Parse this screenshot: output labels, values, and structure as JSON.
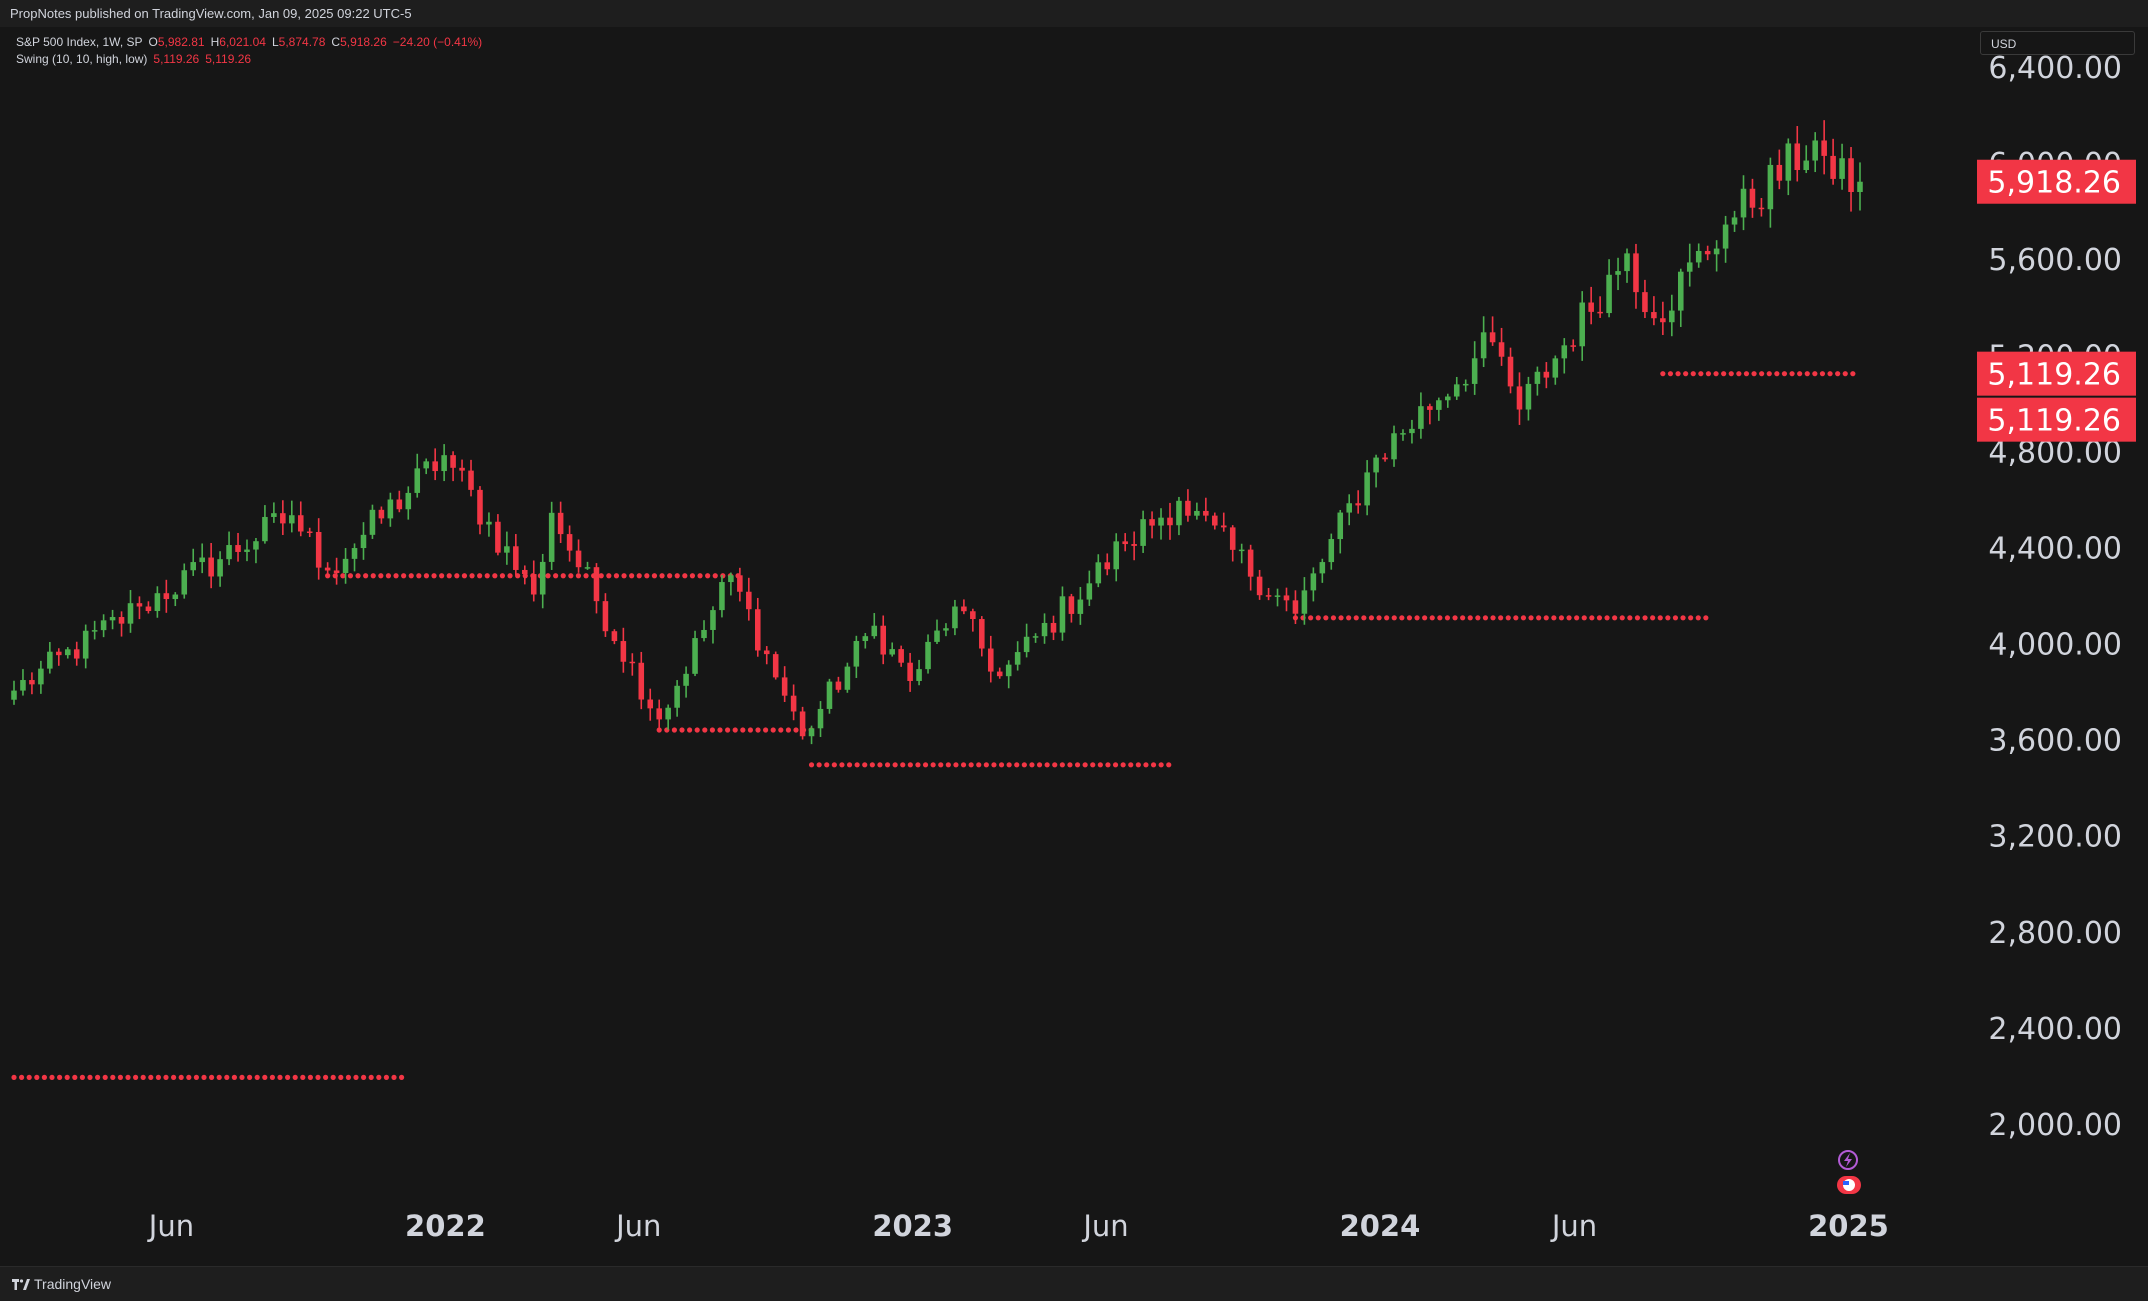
{
  "header": {
    "published": "PropNotes published on TradingView.com, Jan 09, 2025 09:22 UTC-5"
  },
  "legend": {
    "symbol": "S&P 500 Index, 1W, SP",
    "o_label": "O",
    "o_value": "5,982.81",
    "h_label": "H",
    "h_value": "6,021.04",
    "l_label": "L",
    "l_value": "5,874.78",
    "c_label": "C",
    "c_value": "5,918.26",
    "change": "−24.20 (−0.41%)",
    "indicator": "Swing (10, 10, high, low)",
    "indicator_v1": "5,119.26",
    "indicator_v2": "5,119.26"
  },
  "currency": "USD",
  "footer": {
    "brand": "TradingView"
  },
  "colors": {
    "up": "#4caf50",
    "down": "#f23645",
    "swing": "#f23645",
    "background": "#161616",
    "text": "#d1d4dc"
  },
  "chart_data": {
    "type": "candlestick",
    "y_range": [
      1750,
      6560
    ],
    "y_ticks": [
      {
        "value": 2000,
        "label": "2,000.00"
      },
      {
        "value": 2400,
        "label": "2,400.00"
      },
      {
        "value": 2800,
        "label": "2,800.00"
      },
      {
        "value": 3200,
        "label": "3,200.00"
      },
      {
        "value": 3600,
        "label": "3,600.00"
      },
      {
        "value": 4000,
        "label": "4,000.00"
      },
      {
        "value": 4400,
        "label": "4,400.00"
      },
      {
        "value": 4800,
        "label": "4,800.00"
      },
      {
        "value": 5200,
        "label": "5,200.00"
      },
      {
        "value": 5600,
        "label": "5,600.00"
      },
      {
        "value": 6000,
        "label": "6,000.00"
      },
      {
        "value": 6400,
        "label": "6,400.00"
      }
    ],
    "x_range": [
      "2021-01-29",
      "2025-01-10"
    ],
    "x_ticks": [
      {
        "date": "2021-06-01",
        "label": "Jun",
        "bold": false
      },
      {
        "date": "2022-01-01",
        "label": "2022",
        "bold": true
      },
      {
        "date": "2022-06-01",
        "label": "Jun",
        "bold": false
      },
      {
        "date": "2023-01-01",
        "label": "2023",
        "bold": true
      },
      {
        "date": "2023-06-01",
        "label": "Jun",
        "bold": false
      },
      {
        "date": "2024-01-01",
        "label": "2024",
        "bold": true
      },
      {
        "date": "2024-06-01",
        "label": "Jun",
        "bold": false
      },
      {
        "date": "2025-01-01",
        "label": "2025",
        "bold": true
      }
    ],
    "price_labels": [
      {
        "value": 5918.26,
        "label": "5,918.26",
        "offset": 0
      },
      {
        "value": 5119.26,
        "label": "5,119.26",
        "offset": 0
      },
      {
        "value": 5119.26,
        "label": "5,119.26",
        "offset": 1
      }
    ],
    "swing_lines": [
      {
        "from": "2021-01-29",
        "to": "2021-12-03",
        "value": 2190
      },
      {
        "from": "2021-10-01",
        "to": "2022-08-19",
        "value": 4278
      },
      {
        "from": "2022-06-17",
        "to": "2022-10-14",
        "value": 3636
      },
      {
        "from": "2022-10-14",
        "to": "2023-07-21",
        "value": 3491
      },
      {
        "from": "2023-10-27",
        "to": "2024-09-13",
        "value": 4103
      },
      {
        "from": "2024-08-09",
        "to": "2025-01-10",
        "value": 5119.26
      }
    ],
    "anchors": [
      {
        "date": "2021-01-29",
        "value": 3800
      },
      {
        "date": "2021-05-07",
        "value": 4150
      },
      {
        "date": "2021-09-03",
        "value": 4530
      },
      {
        "date": "2021-10-01",
        "value": 4300
      },
      {
        "date": "2021-12-31",
        "value": 4780
      },
      {
        "date": "2022-03-11",
        "value": 4200
      },
      {
        "date": "2022-03-25",
        "value": 4540
      },
      {
        "date": "2022-06-17",
        "value": 3680
      },
      {
        "date": "2022-08-12",
        "value": 4280
      },
      {
        "date": "2022-10-07",
        "value": 3610
      },
      {
        "date": "2022-12-02",
        "value": 4070
      },
      {
        "date": "2022-12-30",
        "value": 3840
      },
      {
        "date": "2023-02-03",
        "value": 4150
      },
      {
        "date": "2023-03-10",
        "value": 3860
      },
      {
        "date": "2023-06-16",
        "value": 4410
      },
      {
        "date": "2023-07-28",
        "value": 4590
      },
      {
        "date": "2023-10-27",
        "value": 4120
      },
      {
        "date": "2023-12-29",
        "value": 4770
      },
      {
        "date": "2024-03-29",
        "value": 5250
      },
      {
        "date": "2024-04-19",
        "value": 4970
      },
      {
        "date": "2024-07-12",
        "value": 5620
      },
      {
        "date": "2024-08-02",
        "value": 5350
      },
      {
        "date": "2024-09-27",
        "value": 5740
      },
      {
        "date": "2024-12-06",
        "value": 6090
      },
      {
        "date": "2024-12-20",
        "value": 5930
      },
      {
        "date": "2025-01-10",
        "value": 5918.26
      }
    ],
    "noise_amplitude_pct": 0.016,
    "wick_pct": 0.012
  }
}
